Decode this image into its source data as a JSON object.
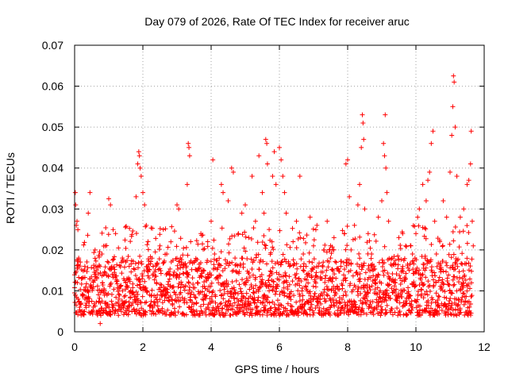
{
  "chart_data": {
    "type": "scatter",
    "title": "Day 079 of 2026, Rate Of TEC Index for receiver aruc",
    "xlabel": "GPS time / hours",
    "ylabel": "ROTI / TECUs",
    "xlim": [
      0,
      12
    ],
    "ylim": [
      0,
      0.07
    ],
    "x_ticks": [
      0,
      2,
      4,
      6,
      8,
      10,
      12
    ],
    "x_tick_labels": [
      "0",
      "2",
      "4",
      "6",
      "8",
      "10",
      "12"
    ],
    "y_ticks": [
      0,
      0.01,
      0.02,
      0.03,
      0.04,
      0.05,
      0.06,
      0.07
    ],
    "y_tick_labels": [
      "0",
      "0.01",
      "0.02",
      "0.03",
      "0.04",
      "0.05",
      "0.06",
      "0.07"
    ],
    "grid": true,
    "marker": "plus",
    "series": [
      {
        "name": "ROTI",
        "color": "#ff0000",
        "points": [
          [
            0.0,
            0.0095
          ],
          [
            0.02,
            0.034
          ],
          [
            0.03,
            0.031
          ],
          [
            0.05,
            0.026
          ],
          [
            0.07,
            0.027
          ],
          [
            0.08,
            0.012
          ],
          [
            0.1,
            0.008
          ],
          [
            0.12,
            0.018
          ],
          [
            0.15,
            0.006
          ],
          [
            0.2,
            0.013
          ],
          [
            0.25,
            0.009
          ],
          [
            0.3,
            0.016
          ],
          [
            0.35,
            0.007
          ],
          [
            0.4,
            0.029
          ],
          [
            0.45,
            0.034
          ],
          [
            0.5,
            0.011
          ],
          [
            0.55,
            0.006
          ],
          [
            0.6,
            0.02
          ],
          [
            0.65,
            0.013
          ],
          [
            0.7,
            0.005
          ],
          [
            0.75,
            0.002
          ],
          [
            0.8,
            0.019
          ],
          [
            0.9,
            0.021
          ],
          [
            0.95,
            0.009
          ],
          [
            1.0,
            0.0325
          ],
          [
            1.05,
            0.031
          ],
          [
            1.1,
            0.014
          ],
          [
            1.2,
            0.024
          ],
          [
            1.3,
            0.008
          ],
          [
            1.4,
            0.018
          ],
          [
            1.5,
            0.012
          ],
          [
            1.6,
            0.016
          ],
          [
            1.7,
            0.007
          ],
          [
            1.8,
            0.033
          ],
          [
            1.85,
            0.041
          ],
          [
            1.88,
            0.044
          ],
          [
            1.9,
            0.043
          ],
          [
            1.92,
            0.04
          ],
          [
            1.95,
            0.038
          ],
          [
            2.0,
            0.034
          ],
          [
            2.05,
            0.031
          ],
          [
            2.1,
            0.026
          ],
          [
            2.15,
            0.022
          ],
          [
            2.2,
            0.009
          ],
          [
            2.3,
            0.016
          ],
          [
            2.4,
            0.012
          ],
          [
            2.5,
            0.021
          ],
          [
            2.6,
            0.025
          ],
          [
            2.7,
            0.019
          ],
          [
            2.8,
            0.011
          ],
          [
            2.9,
            0.014
          ],
          [
            3.0,
            0.031
          ],
          [
            3.05,
            0.03
          ],
          [
            3.1,
            0.018
          ],
          [
            3.2,
            0.011
          ],
          [
            3.3,
            0.036
          ],
          [
            3.33,
            0.046
          ],
          [
            3.35,
            0.045
          ],
          [
            3.37,
            0.043
          ],
          [
            3.4,
            0.022
          ],
          [
            3.5,
            0.017
          ],
          [
            3.6,
            0.012
          ],
          [
            3.7,
            0.024
          ],
          [
            3.8,
            0.009
          ],
          [
            3.9,
            0.022
          ],
          [
            4.0,
            0.027
          ],
          [
            4.05,
            0.042
          ],
          [
            4.1,
            0.019
          ],
          [
            4.2,
            0.013
          ],
          [
            4.3,
            0.036
          ],
          [
            4.35,
            0.034
          ],
          [
            4.4,
            0.011
          ],
          [
            4.5,
            0.032
          ],
          [
            4.6,
            0.04
          ],
          [
            4.65,
            0.039
          ],
          [
            4.7,
            0.018
          ],
          [
            4.8,
            0.024
          ],
          [
            4.9,
            0.029
          ],
          [
            5.0,
            0.031
          ],
          [
            5.1,
            0.023
          ],
          [
            5.2,
            0.038
          ],
          [
            5.3,
            0.027
          ],
          [
            5.4,
            0.043
          ],
          [
            5.5,
            0.034
          ],
          [
            5.55,
            0.029
          ],
          [
            5.6,
            0.047
          ],
          [
            5.63,
            0.046
          ],
          [
            5.65,
            0.041
          ],
          [
            5.7,
            0.025
          ],
          [
            5.8,
            0.038
          ],
          [
            5.85,
            0.044
          ],
          [
            5.9,
            0.036
          ],
          [
            6.0,
            0.045
          ],
          [
            6.05,
            0.042
          ],
          [
            6.1,
            0.038
          ],
          [
            6.15,
            0.034
          ],
          [
            6.2,
            0.029
          ],
          [
            6.3,
            0.016
          ],
          [
            6.4,
            0.022
          ],
          [
            6.5,
            0.027
          ],
          [
            6.6,
            0.038
          ],
          [
            6.7,
            0.019
          ],
          [
            6.8,
            0.014
          ],
          [
            6.9,
            0.028
          ],
          [
            7.0,
            0.021
          ],
          [
            7.1,
            0.026
          ],
          [
            7.2,
            0.013
          ],
          [
            7.3,
            0.02
          ],
          [
            7.4,
            0.027
          ],
          [
            7.5,
            0.018
          ],
          [
            7.6,
            0.023
          ],
          [
            7.7,
            0.011
          ],
          [
            7.8,
            0.016
          ],
          [
            7.9,
            0.024
          ],
          [
            7.95,
            0.041
          ],
          [
            8.0,
            0.042
          ],
          [
            8.05,
            0.033
          ],
          [
            8.1,
            0.02
          ],
          [
            8.2,
            0.026
          ],
          [
            8.3,
            0.031
          ],
          [
            8.35,
            0.036
          ],
          [
            8.4,
            0.045
          ],
          [
            8.43,
            0.053
          ],
          [
            8.45,
            0.051
          ],
          [
            8.47,
            0.047
          ],
          [
            8.5,
            0.03
          ],
          [
            8.6,
            0.024
          ],
          [
            8.7,
            0.019
          ],
          [
            8.8,
            0.012
          ],
          [
            8.9,
            0.028
          ],
          [
            9.0,
            0.032
          ],
          [
            9.05,
            0.046
          ],
          [
            9.08,
            0.043
          ],
          [
            9.1,
            0.053
          ],
          [
            9.12,
            0.04
          ],
          [
            9.15,
            0.034
          ],
          [
            9.2,
            0.027
          ],
          [
            9.3,
            0.018
          ],
          [
            9.4,
            0.012
          ],
          [
            9.5,
            0.023
          ],
          [
            9.6,
            0.015
          ],
          [
            9.7,
            0.021
          ],
          [
            9.8,
            0.009
          ],
          [
            9.9,
            0.019
          ],
          [
            10.0,
            0.024
          ],
          [
            10.05,
            0.028
          ],
          [
            10.1,
            0.03
          ],
          [
            10.2,
            0.036
          ],
          [
            10.3,
            0.032
          ],
          [
            10.35,
            0.037
          ],
          [
            10.4,
            0.039
          ],
          [
            10.45,
            0.046
          ],
          [
            10.5,
            0.049
          ],
          [
            10.55,
            0.027
          ],
          [
            10.6,
            0.019
          ],
          [
            10.7,
            0.022
          ],
          [
            10.8,
            0.032
          ],
          [
            10.9,
            0.028
          ],
          [
            11.0,
            0.039
          ],
          [
            11.05,
            0.048
          ],
          [
            11.08,
            0.055
          ],
          [
            11.1,
            0.0625
          ],
          [
            11.12,
            0.061
          ],
          [
            11.15,
            0.05
          ],
          [
            11.2,
            0.038
          ],
          [
            11.3,
            0.028
          ],
          [
            11.4,
            0.03
          ],
          [
            11.5,
            0.036
          ],
          [
            11.55,
            0.037
          ],
          [
            11.6,
            0.041
          ],
          [
            11.62,
            0.049
          ],
          [
            11.65,
            0.027
          ],
          [
            11.68,
            0.021
          ]
        ],
        "band": {
          "description_points": "dense core band of samples",
          "x_start": 0.0,
          "x_end": 11.65,
          "x_step": 0.012,
          "core_min": 0.004,
          "core_max": 0.018
        }
      }
    ]
  }
}
